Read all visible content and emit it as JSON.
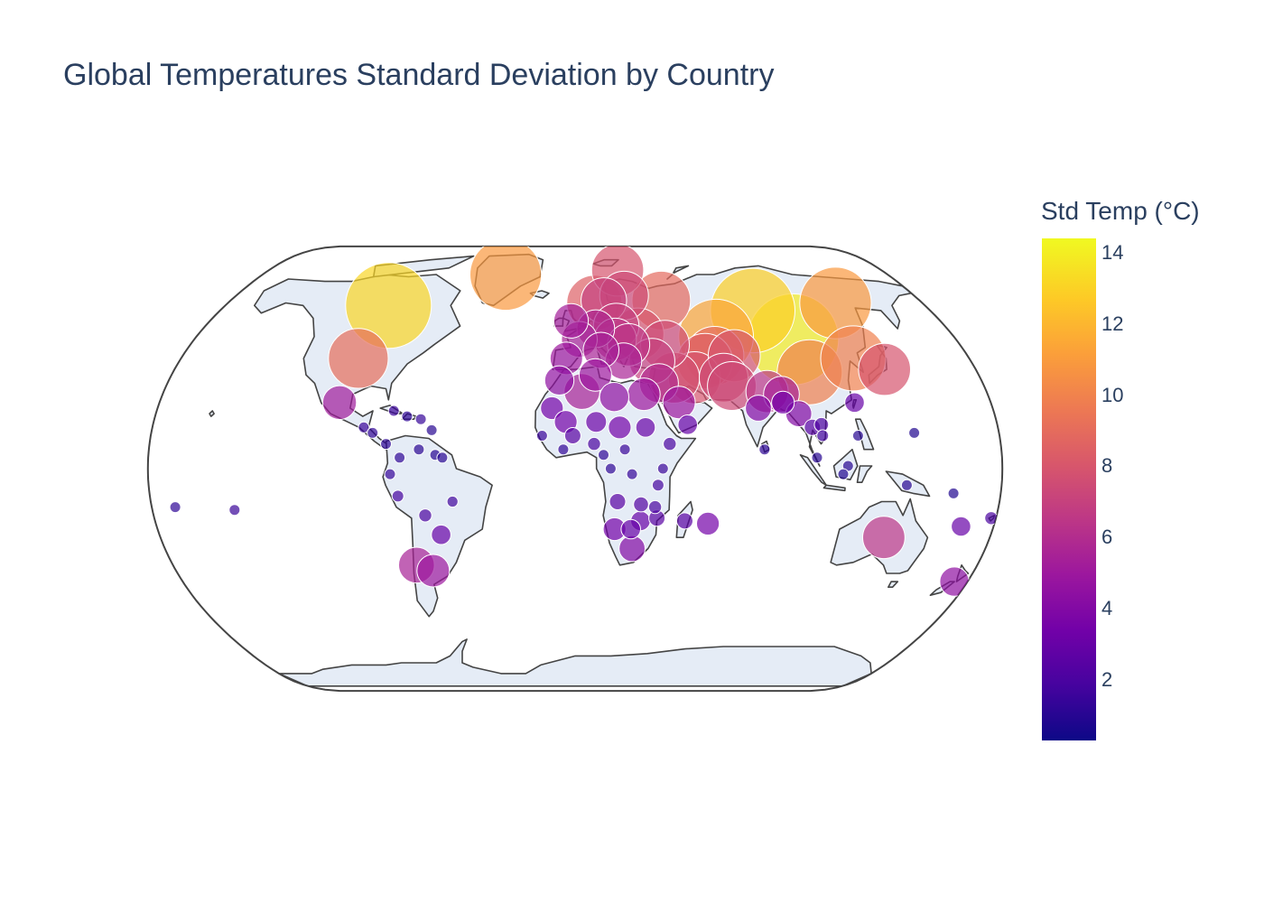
{
  "chart_data": {
    "type": "scatter",
    "subtype": "scatter_geo",
    "title": "Global Temperatures Standard Deviation by Country",
    "projection": "natural earth",
    "color_scale": "Plasma",
    "colors": {
      "land": "#e5ecf6",
      "coastline": "#444444",
      "title_text": "#2a3f5f",
      "marker_outline": "#ffffff"
    },
    "colorbar": {
      "title": "Std Temp (°C)",
      "range": [
        0.3,
        14.4
      ],
      "tick_values": [
        2,
        4,
        6,
        8,
        10,
        12,
        14
      ],
      "tick_labels": [
        "2",
        "4",
        "6",
        "8",
        "10",
        "12",
        "14"
      ]
    },
    "points": [
      {
        "lon": -96,
        "lat": 60,
        "std": 13.2
      },
      {
        "lon": -99,
        "lat": 40,
        "std": 9.2
      },
      {
        "lon": -40,
        "lat": 73,
        "std": 11.0
      },
      {
        "lon": -102,
        "lat": 24,
        "std": 5.2
      },
      {
        "lon": -90,
        "lat": 15,
        "std": 1.5
      },
      {
        "lon": -86,
        "lat": 13,
        "std": 1.3
      },
      {
        "lon": -80,
        "lat": 9,
        "std": 1.2
      },
      {
        "lon": -78,
        "lat": 21,
        "std": 1.6
      },
      {
        "lon": -72,
        "lat": 19,
        "std": 1.2
      },
      {
        "lon": -66,
        "lat": 18,
        "std": 1.4
      },
      {
        "lon": -61,
        "lat": 14,
        "std": 1.0
      },
      {
        "lon": -66,
        "lat": 7,
        "std": 1.1
      },
      {
        "lon": -59,
        "lat": 5,
        "std": 1.0
      },
      {
        "lon": -56,
        "lat": 4,
        "std": 1.0
      },
      {
        "lon": -74,
        "lat": 4,
        "std": 1.2
      },
      {
        "lon": -78,
        "lat": -2,
        "std": 1.4
      },
      {
        "lon": -75,
        "lat": -10,
        "std": 1.8
      },
      {
        "lon": -52,
        "lat": -12,
        "std": 1.7
      },
      {
        "lon": -64,
        "lat": -17,
        "std": 2.0
      },
      {
        "lon": -58,
        "lat": -24,
        "std": 3.0
      },
      {
        "lon": -71,
        "lat": -35,
        "std": 5.5
      },
      {
        "lon": -64,
        "lat": -37,
        "std": 5.0
      },
      {
        "lon": -145,
        "lat": -15,
        "std": 1.5
      },
      {
        "lon": -170,
        "lat": -14,
        "std": 1.2
      },
      {
        "lon": -2,
        "lat": 54,
        "std": 5.3
      },
      {
        "lon": 10,
        "lat": 61,
        "std": 8.5
      },
      {
        "lon": 15,
        "lat": 62,
        "std": 7.0
      },
      {
        "lon": 26,
        "lat": 64,
        "std": 7.5
      },
      {
        "lon": 2,
        "lat": 47,
        "std": 5.5
      },
      {
        "lon": 10,
        "lat": 51,
        "std": 5.8
      },
      {
        "lon": 20,
        "lat": 52,
        "std": 7.0
      },
      {
        "lon": 12,
        "lat": 43,
        "std": 5.5
      },
      {
        "lon": -4,
        "lat": 40,
        "std": 5.0
      },
      {
        "lon": 22,
        "lat": 39,
        "std": 5.6
      },
      {
        "lon": 30,
        "lat": 49,
        "std": 8.0
      },
      {
        "lon": 35,
        "lat": 39,
        "std": 7.0
      },
      {
        "lon": 45,
        "lat": 62,
        "std": 9.0
      },
      {
        "lon": 42,
        "lat": 45,
        "std": 7.5
      },
      {
        "lon": 53,
        "lat": 33,
        "std": 8.0
      },
      {
        "lon": 44,
        "lat": 33,
        "std": 7.8
      },
      {
        "lon": 45,
        "lat": 24,
        "std": 5.0
      },
      {
        "lon": 48,
        "lat": 16,
        "std": 3.0
      },
      {
        "lon": 30,
        "lat": 27,
        "std": 5.0
      },
      {
        "lon": 17,
        "lat": 26,
        "std": 4.5
      },
      {
        "lon": 3,
        "lat": 28,
        "std": 5.5
      },
      {
        "lon": -7,
        "lat": 32,
        "std": 4.5
      },
      {
        "lon": -10,
        "lat": 22,
        "std": 3.5
      },
      {
        "lon": -4,
        "lat": 17,
        "std": 3.5
      },
      {
        "lon": 9,
        "lat": 17,
        "std": 3.2
      },
      {
        "lon": 19,
        "lat": 15,
        "std": 3.5
      },
      {
        "lon": 30,
        "lat": 15,
        "std": 3.0
      },
      {
        "lon": 40,
        "lat": 9,
        "std": 2.0
      },
      {
        "lon": 8,
        "lat": 9,
        "std": 2.0
      },
      {
        "lon": -1,
        "lat": 12,
        "std": 2.5
      },
      {
        "lon": -14,
        "lat": 12,
        "std": 1.5
      },
      {
        "lon": -5,
        "lat": 7,
        "std": 1.3
      },
      {
        "lon": 12,
        "lat": 5,
        "std": 1.2
      },
      {
        "lon": 21,
        "lat": 7,
        "std": 1.5
      },
      {
        "lon": 24,
        "lat": -2,
        "std": 1.4
      },
      {
        "lon": 15,
        "lat": 0,
        "std": 1.2
      },
      {
        "lon": 37,
        "lat": 0,
        "std": 1.5
      },
      {
        "lon": 35,
        "lat": -6,
        "std": 1.8
      },
      {
        "lon": 18,
        "lat": -12,
        "std": 2.5
      },
      {
        "lon": 28,
        "lat": -13,
        "std": 2.3
      },
      {
        "lon": 34,
        "lat": -14,
        "std": 2.0
      },
      {
        "lon": 35,
        "lat": -18,
        "std": 2.5
      },
      {
        "lon": 28,
        "lat": -19,
        "std": 3.0
      },
      {
        "lon": 17,
        "lat": -22,
        "std": 3.5
      },
      {
        "lon": 24,
        "lat": -22,
        "std": 3.0
      },
      {
        "lon": 25,
        "lat": -29,
        "std": 4.0
      },
      {
        "lon": 47,
        "lat": -19,
        "std": 2.5
      },
      {
        "lon": 57,
        "lat": -20,
        "std": 3.5
      },
      {
        "lon": 67,
        "lat": 48,
        "std": 11.5
      },
      {
        "lon": 64,
        "lat": 41,
        "std": 9.0
      },
      {
        "lon": 73,
        "lat": 41,
        "std": 8.0
      },
      {
        "lon": 59,
        "lat": 39,
        "std": 8.5
      },
      {
        "lon": 66,
        "lat": 33,
        "std": 7.5
      },
      {
        "lon": 69,
        "lat": 30,
        "std": 7.5
      },
      {
        "lon": 79,
        "lat": 22,
        "std": 4.0
      },
      {
        "lon": 84,
        "lat": 28,
        "std": 6.5
      },
      {
        "lon": 90,
        "lat": 27,
        "std": 5.5
      },
      {
        "lon": 90,
        "lat": 24,
        "std": 3.5
      },
      {
        "lon": 80,
        "lat": 7,
        "std": 1.2
      },
      {
        "lon": 96,
        "lat": 20,
        "std": 4.0
      },
      {
        "lon": 101,
        "lat": 15,
        "std": 2.5
      },
      {
        "lon": 105,
        "lat": 16,
        "std": 2.2
      },
      {
        "lon": 105,
        "lat": 12,
        "std": 1.8
      },
      {
        "lon": 102,
        "lat": 4,
        "std": 1.0
      },
      {
        "lon": 115,
        "lat": 1,
        "std": 1.0
      },
      {
        "lon": 120,
        "lat": 12,
        "std": 1.0
      },
      {
        "lon": 113,
        "lat": -2,
        "std": 0.8
      },
      {
        "lon": 140,
        "lat": -6,
        "std": 1.0
      },
      {
        "lon": 160,
        "lat": -9,
        "std": 0.8
      },
      {
        "lon": 144,
        "lat": 13,
        "std": 0.8
      },
      {
        "lon": 105,
        "lat": 35,
        "std": 10.0
      },
      {
        "lon": 103,
        "lat": 47,
        "std": 14.0
      },
      {
        "lon": 90,
        "lat": 58,
        "std": 13.0
      },
      {
        "lon": 135,
        "lat": 61,
        "std": 11.0
      },
      {
        "lon": 127,
        "lat": 40,
        "std": 10.0
      },
      {
        "lon": 139,
        "lat": 36,
        "std": 8.0
      },
      {
        "lon": 121,
        "lat": 24,
        "std": 3.0
      },
      {
        "lon": 134,
        "lat": -25,
        "std": 6.5
      },
      {
        "lon": 174,
        "lat": -41,
        "std": 4.5
      },
      {
        "lon": 166,
        "lat": -21,
        "std": 3.0
      },
      {
        "lon": 178,
        "lat": -18,
        "std": 2.0
      },
      {
        "lon": 25,
        "lat": 75,
        "std": 8.0
      },
      {
        "lon": 19,
        "lat": 47,
        "std": 6.5
      },
      {
        "lon": 25,
        "lat": 45,
        "std": 6.5
      },
      {
        "lon": 37,
        "lat": 31,
        "std": 6.0
      },
      {
        "lon": 9,
        "lat": 34,
        "std": 5.0
      }
    ]
  }
}
